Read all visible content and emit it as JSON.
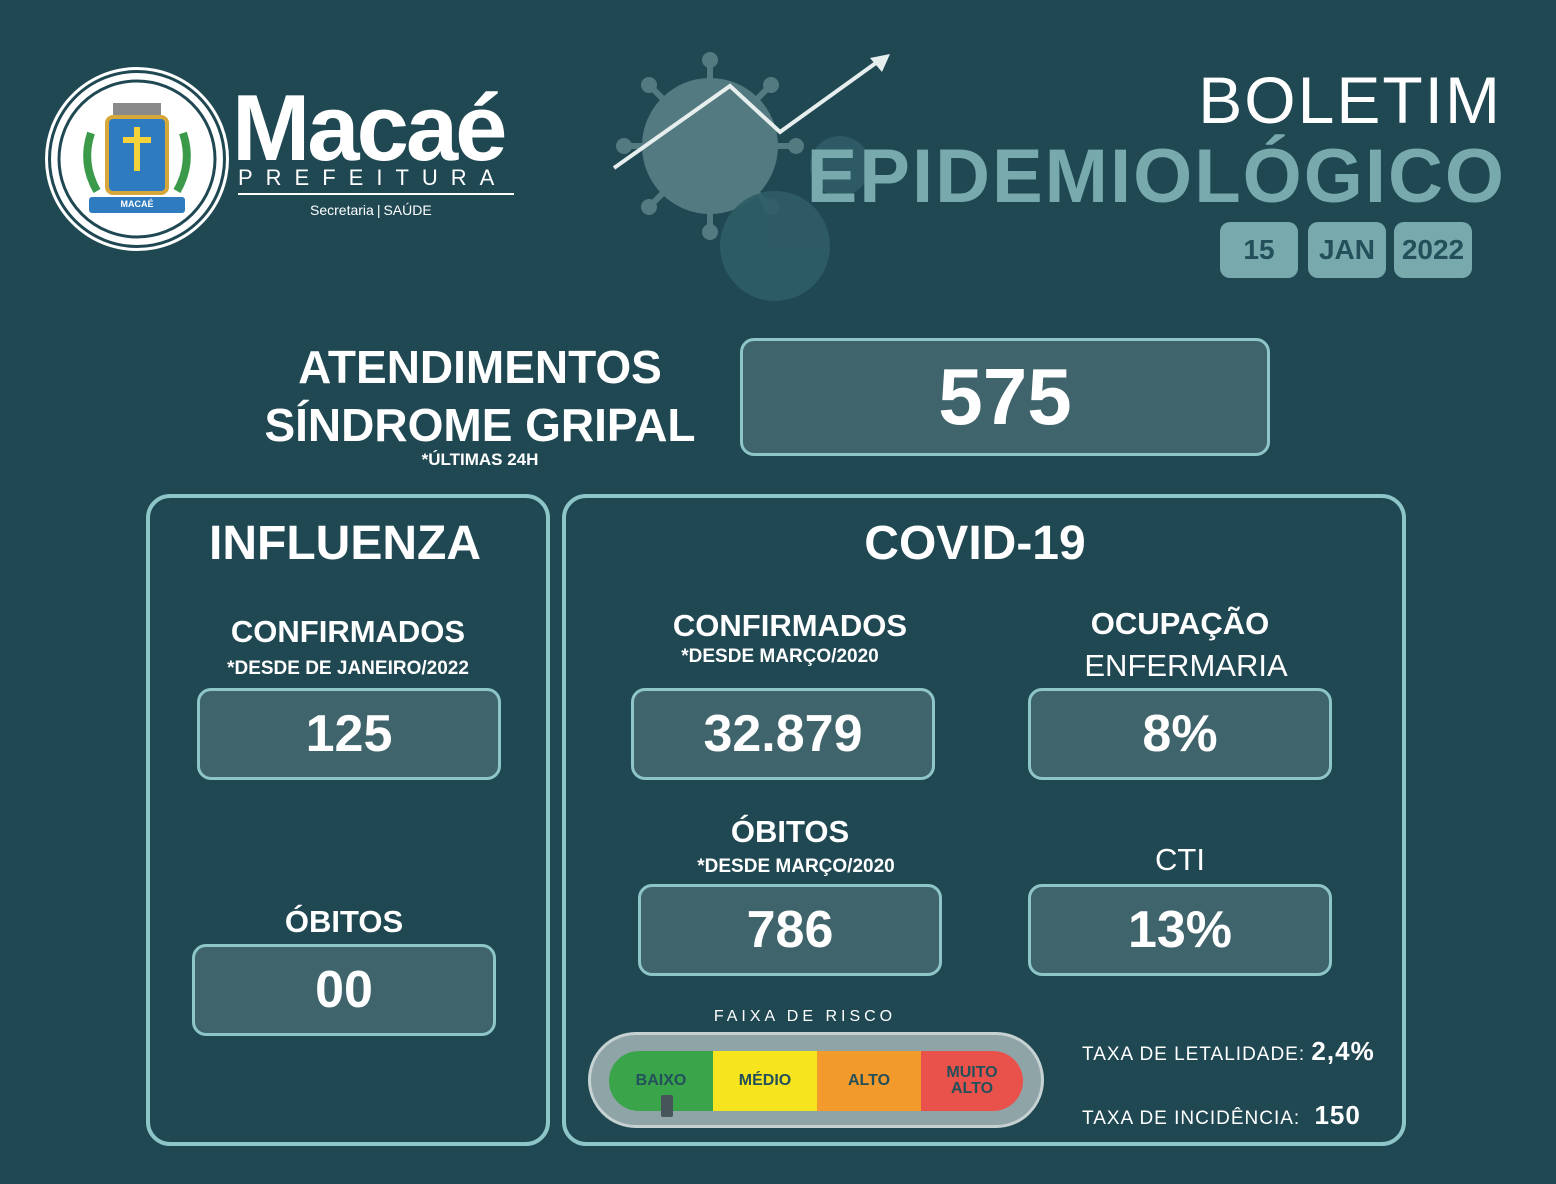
{
  "header": {
    "city": "Macaé",
    "org": "PREFEITURA",
    "dept_left": "Secretaria",
    "dept_right": "SAÚDE",
    "seal_text": "MACAÉ",
    "title_line1": "BOLETIM",
    "title_line2": "EPIDEMIOLÓGICO",
    "date": {
      "day": "15",
      "month": "JAN",
      "year": "2022"
    }
  },
  "atendimentos": {
    "line1": "ATENDIMENTOS",
    "line2": "SÍNDROME GRIPAL",
    "note": "*ÚLTIMAS 24H",
    "value": "575"
  },
  "influenza": {
    "title": "INFLUENZA",
    "confirmados_label": "CONFIRMADOS",
    "confirmados_note": "*DESDE DE JANEIRO/2022",
    "confirmados_value": "125",
    "obitos_label": "ÓBITOS",
    "obitos_value": "00"
  },
  "covid": {
    "title": "COVID-19",
    "confirmados_label": "CONFIRMADOS",
    "confirmados_note": "*DESDE MARÇO/2020",
    "confirmados_value": "32.879",
    "obitos_label": "ÓBITOS",
    "obitos_note": "*DESDE MARÇO/2020",
    "obitos_value": "786",
    "ocupacao_label": "OCUPAÇÃO",
    "enfermaria_label": "ENFERMARIA",
    "enfermaria_value": "8%",
    "cti_label": "CTI",
    "cti_value": "13%",
    "risco": {
      "title": "FAIXA DE RISCO",
      "levels": [
        "BAIXO",
        "MÉDIO",
        "ALTO",
        "MUITO ALTO"
      ],
      "colors": [
        "#3aa44a",
        "#f5e41e",
        "#f39a2c",
        "#e9524a"
      ],
      "current": "BAIXO"
    },
    "letalidade_label": "TAXA DE LETALIDADE:",
    "letalidade_value": "2,4%",
    "incidencia_label": "TAXA DE INCIDÊNCIA:",
    "incidencia_value": "150"
  },
  "colors": {
    "background": "#1f4853",
    "accent": "#8ec5c9",
    "box": "#3f646b"
  }
}
